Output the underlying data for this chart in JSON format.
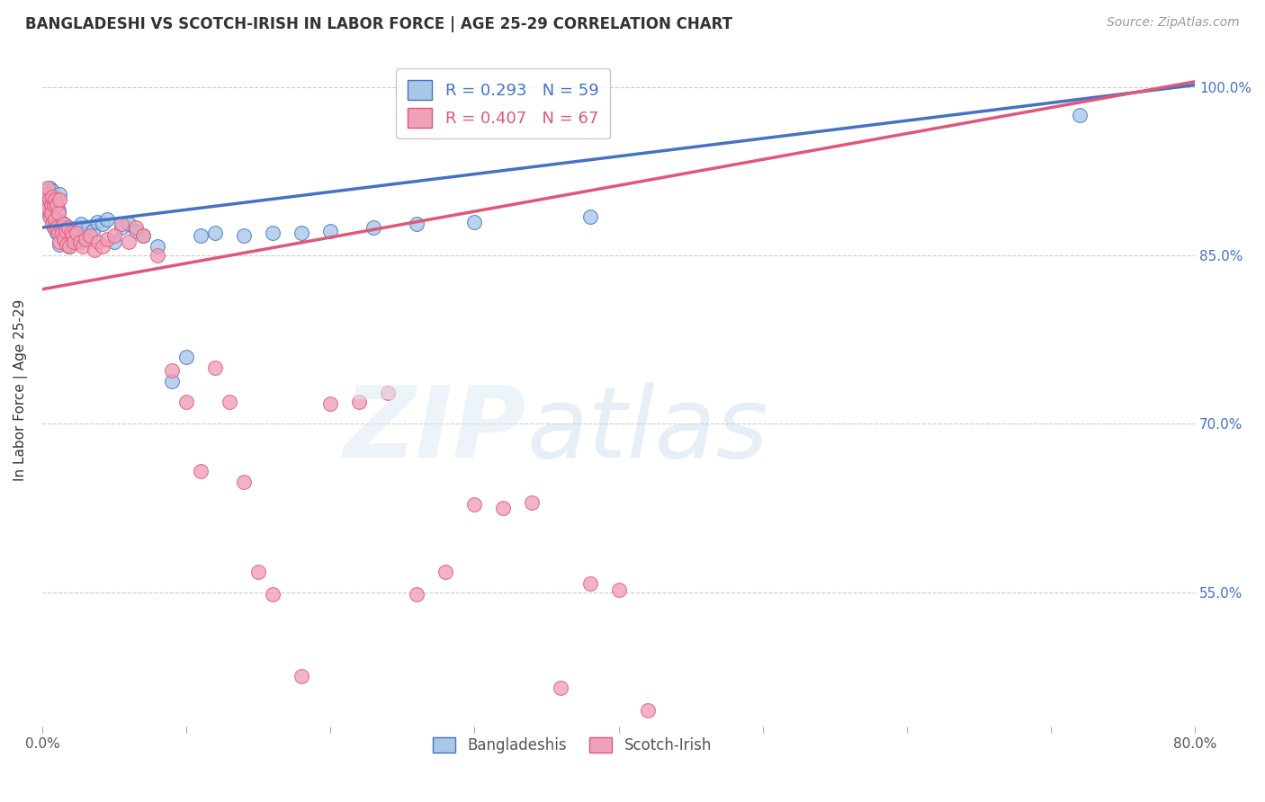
{
  "title": "BANGLADESHI VS SCOTCH-IRISH IN LABOR FORCE | AGE 25-29 CORRELATION CHART",
  "source": "Source: ZipAtlas.com",
  "ylabel": "In Labor Force | Age 25-29",
  "xlim": [
    0.0,
    0.8
  ],
  "ylim": [
    0.43,
    1.03
  ],
  "xticks": [
    0.0,
    0.1,
    0.2,
    0.3,
    0.4,
    0.5,
    0.6,
    0.7,
    0.8
  ],
  "xticklabels": [
    "0.0%",
    "",
    "",
    "",
    "",
    "",
    "",
    "",
    "80.0%"
  ],
  "ytick_positions": [
    0.55,
    0.7,
    0.85,
    1.0
  ],
  "ytick_labels": [
    "55.0%",
    "70.0%",
    "85.0%",
    "100.0%"
  ],
  "blue_color": "#a8c8e8",
  "pink_color": "#f0a0b8",
  "blue_line_color": "#4472c4",
  "pink_line_color": "#e05878",
  "blue_scatter_x": [
    0.002,
    0.003,
    0.004,
    0.004,
    0.005,
    0.005,
    0.006,
    0.006,
    0.007,
    0.007,
    0.008,
    0.008,
    0.009,
    0.009,
    0.01,
    0.01,
    0.011,
    0.011,
    0.012,
    0.012,
    0.013,
    0.013,
    0.014,
    0.015,
    0.015,
    0.016,
    0.017,
    0.018,
    0.019,
    0.02,
    0.022,
    0.023,
    0.025,
    0.027,
    0.03,
    0.032,
    0.035,
    0.038,
    0.042,
    0.045,
    0.05,
    0.055,
    0.06,
    0.065,
    0.07,
    0.08,
    0.09,
    0.1,
    0.11,
    0.12,
    0.14,
    0.16,
    0.18,
    0.2,
    0.23,
    0.26,
    0.3,
    0.38,
    0.72
  ],
  "blue_scatter_y": [
    0.9,
    0.895,
    0.905,
    0.892,
    0.91,
    0.888,
    0.9,
    0.885,
    0.893,
    0.908,
    0.875,
    0.895,
    0.88,
    0.9,
    0.87,
    0.895,
    0.875,
    0.89,
    0.86,
    0.905,
    0.88,
    0.875,
    0.87,
    0.878,
    0.865,
    0.87,
    0.862,
    0.875,
    0.858,
    0.87,
    0.865,
    0.862,
    0.875,
    0.878,
    0.868,
    0.875,
    0.872,
    0.88,
    0.878,
    0.882,
    0.862,
    0.875,
    0.878,
    0.872,
    0.868,
    0.858,
    0.738,
    0.76,
    0.868,
    0.87,
    0.868,
    0.87,
    0.87,
    0.872,
    0.875,
    0.878,
    0.88,
    0.885,
    0.975
  ],
  "pink_scatter_x": [
    0.002,
    0.003,
    0.004,
    0.004,
    0.005,
    0.005,
    0.006,
    0.006,
    0.007,
    0.007,
    0.008,
    0.008,
    0.009,
    0.009,
    0.01,
    0.01,
    0.011,
    0.011,
    0.012,
    0.012,
    0.013,
    0.014,
    0.015,
    0.015,
    0.016,
    0.017,
    0.018,
    0.019,
    0.02,
    0.021,
    0.022,
    0.024,
    0.026,
    0.028,
    0.03,
    0.033,
    0.036,
    0.039,
    0.042,
    0.045,
    0.05,
    0.055,
    0.06,
    0.065,
    0.07,
    0.08,
    0.09,
    0.1,
    0.11,
    0.12,
    0.13,
    0.14,
    0.15,
    0.16,
    0.18,
    0.2,
    0.22,
    0.24,
    0.26,
    0.28,
    0.3,
    0.32,
    0.34,
    0.36,
    0.38,
    0.4,
    0.42
  ],
  "pink_scatter_y": [
    0.898,
    0.905,
    0.892,
    0.91,
    0.885,
    0.9,
    0.895,
    0.888,
    0.902,
    0.878,
    0.895,
    0.875,
    0.9,
    0.882,
    0.875,
    0.895,
    0.87,
    0.888,
    0.862,
    0.9,
    0.875,
    0.87,
    0.878,
    0.865,
    0.872,
    0.86,
    0.875,
    0.858,
    0.87,
    0.868,
    0.862,
    0.87,
    0.862,
    0.858,
    0.865,
    0.868,
    0.855,
    0.862,
    0.858,
    0.865,
    0.868,
    0.878,
    0.862,
    0.875,
    0.868,
    0.85,
    0.748,
    0.72,
    0.658,
    0.75,
    0.72,
    0.648,
    0.568,
    0.548,
    0.475,
    0.718,
    0.72,
    0.728,
    0.548,
    0.568,
    0.628,
    0.625,
    0.63,
    0.465,
    0.558,
    0.552,
    0.445
  ]
}
